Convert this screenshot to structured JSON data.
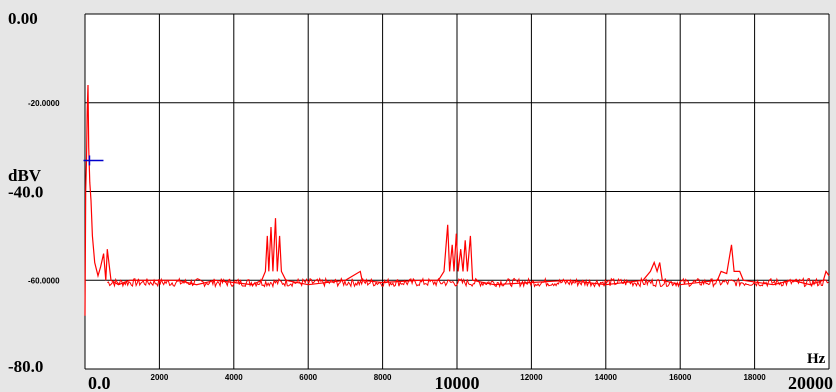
{
  "chart_data": {
    "type": "line",
    "xlabel": "Hz",
    "ylabel": "dBV",
    "xlim": [
      0,
      20000
    ],
    "ylim": [
      -80,
      0
    ],
    "x_ticks": [
      {
        "value": 0,
        "label": "0.0",
        "style": "big"
      },
      {
        "value": 2000,
        "label": "2000",
        "style": "small"
      },
      {
        "value": 4000,
        "label": "4000",
        "style": "small"
      },
      {
        "value": 6000,
        "label": "6000",
        "style": "small"
      },
      {
        "value": 8000,
        "label": "8000",
        "style": "small"
      },
      {
        "value": 10000,
        "label": "10000",
        "style": "big"
      },
      {
        "value": 12000,
        "label": "12000",
        "style": "small"
      },
      {
        "value": 14000,
        "label": "14000",
        "style": "small"
      },
      {
        "value": 16000,
        "label": "16000",
        "style": "small"
      },
      {
        "value": 18000,
        "label": "18000",
        "style": "small"
      },
      {
        "value": 20000,
        "label": "20000",
        "style": "big"
      }
    ],
    "y_ticks": [
      {
        "value": 0,
        "label": "0.00",
        "style": "big"
      },
      {
        "value": -20,
        "label": "-20.0000",
        "style": "small"
      },
      {
        "value": -40,
        "label": "-40.0",
        "style": "big"
      },
      {
        "value": -60,
        "label": "-60.0000",
        "style": "small"
      },
      {
        "value": -80,
        "label": "-80.0",
        "style": "big"
      }
    ],
    "grid": true,
    "noise_floor_dbv": -60.5,
    "series": [
      {
        "color": "#ff0000",
        "points": [
          [
            0,
            -68
          ],
          [
            20,
            -40
          ],
          [
            40,
            -33
          ],
          [
            60,
            -22
          ],
          [
            80,
            -16
          ],
          [
            100,
            -30
          ],
          [
            130,
            -38
          ],
          [
            160,
            -42
          ],
          [
            200,
            -50
          ],
          [
            260,
            -56
          ],
          [
            350,
            -59
          ],
          [
            420,
            -57
          ],
          [
            500,
            -54
          ],
          [
            560,
            -60
          ],
          [
            600,
            -53
          ],
          [
            700,
            -60
          ],
          [
            900,
            -61
          ],
          [
            1200,
            -60
          ],
          [
            1800,
            -60
          ],
          [
            2500,
            -60
          ],
          [
            3000,
            -61
          ],
          [
            3500,
            -60
          ],
          [
            4000,
            -60.5
          ],
          [
            4500,
            -61
          ],
          [
            4750,
            -60
          ],
          [
            4850,
            -58
          ],
          [
            4900,
            -50
          ],
          [
            4940,
            -58
          ],
          [
            5000,
            -48
          ],
          [
            5050,
            -58
          ],
          [
            5120,
            -46
          ],
          [
            5170,
            -58
          ],
          [
            5230,
            -50
          ],
          [
            5280,
            -58
          ],
          [
            5400,
            -60
          ],
          [
            6000,
            -61
          ],
          [
            7000,
            -60
          ],
          [
            7400,
            -58
          ],
          [
            7450,
            -60
          ],
          [
            8000,
            -60.5
          ],
          [
            9000,
            -60
          ],
          [
            9500,
            -60
          ],
          [
            9650,
            -58
          ],
          [
            9750,
            -47.5
          ],
          [
            9800,
            -58
          ],
          [
            9870,
            -52
          ],
          [
            9920,
            -58
          ],
          [
            9980,
            -49.5
          ],
          [
            10030,
            -58
          ],
          [
            10100,
            -53
          ],
          [
            10160,
            -58
          ],
          [
            10220,
            -51
          ],
          [
            10280,
            -58
          ],
          [
            10360,
            -50
          ],
          [
            10420,
            -60
          ],
          [
            11000,
            -61
          ],
          [
            12000,
            -60.5
          ],
          [
            13000,
            -60
          ],
          [
            14000,
            -61
          ],
          [
            15000,
            -60
          ],
          [
            15200,
            -58
          ],
          [
            15300,
            -56
          ],
          [
            15380,
            -58
          ],
          [
            15450,
            -56
          ],
          [
            15520,
            -60
          ],
          [
            16000,
            -61
          ],
          [
            17000,
            -60
          ],
          [
            17100,
            -58
          ],
          [
            17250,
            -58.5
          ],
          [
            17380,
            -52
          ],
          [
            17450,
            -58
          ],
          [
            17600,
            -58
          ],
          [
            17700,
            -60
          ],
          [
            18500,
            -61
          ],
          [
            19000,
            -60
          ],
          [
            19500,
            -61
          ],
          [
            19850,
            -60
          ],
          [
            19920,
            -58
          ],
          [
            20000,
            -59
          ]
        ]
      }
    ],
    "marker": {
      "x": 120,
      "y": -33,
      "color": "#0000cc"
    }
  }
}
